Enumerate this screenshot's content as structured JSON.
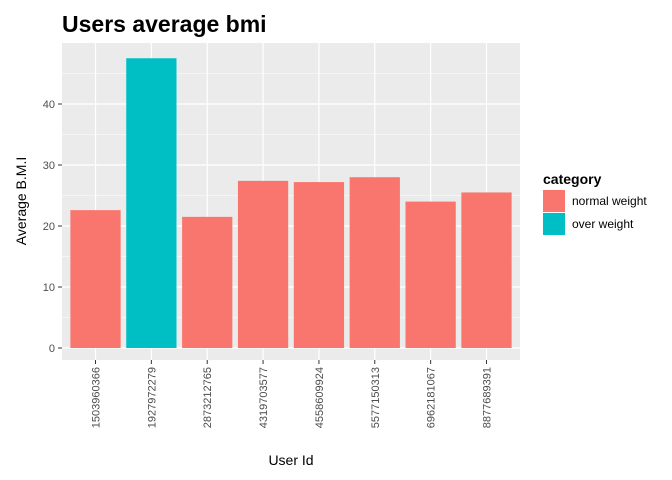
{
  "chart_data": {
    "type": "bar",
    "title": "Users average bmi",
    "xlabel": "User Id",
    "ylabel": "Average B.M.I",
    "ylim": [
      0,
      48.8
    ],
    "yticks": [
      0,
      10,
      20,
      30,
      40
    ],
    "grid": true,
    "legend_position": "right",
    "legend_title": "category",
    "colors": {
      "normal weight": "#F8766D",
      "over weight": "#00BFC4",
      "panel": "#EBEBEB",
      "grid": "#FFFFFF"
    },
    "categories": [
      "1503960366",
      "1927972279",
      "2873212765",
      "4319703577",
      "4558609924",
      "5577150313",
      "6962181067",
      "8877689391"
    ],
    "values": [
      22.6,
      47.5,
      21.5,
      27.4,
      27.2,
      28.0,
      24.0,
      25.5
    ],
    "category_of_bar": [
      "normal weight",
      "over weight",
      "normal weight",
      "normal weight",
      "normal weight",
      "normal weight",
      "normal weight",
      "normal weight"
    ],
    "legend": [
      {
        "label": "normal weight",
        "color": "#F8766D"
      },
      {
        "label": "over weight",
        "color": "#00BFC4"
      }
    ]
  }
}
